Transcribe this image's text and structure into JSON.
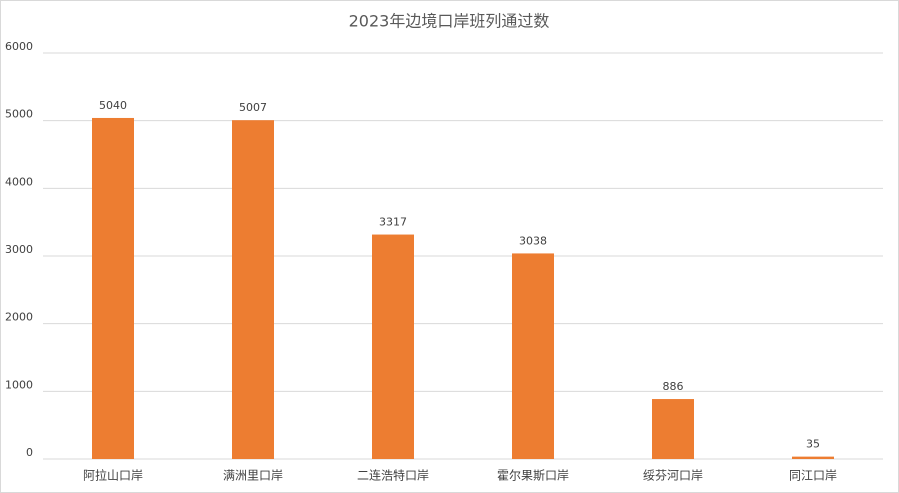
{
  "chart_data": {
    "type": "bar",
    "title": "2023年边境口岸班列通过数",
    "categories": [
      "阿拉山口岸",
      "满洲里口岸",
      "二连浩特口岸",
      "霍尔果斯口岸",
      "绥芬河口岸",
      "同江口岸"
    ],
    "values": [
      5040,
      5007,
      3317,
      3038,
      886,
      35
    ],
    "color": "#ed7d31",
    "ylim": [
      0,
      6000
    ],
    "yticks": [
      0,
      1000,
      2000,
      3000,
      4000,
      5000,
      6000
    ],
    "grid": true
  }
}
